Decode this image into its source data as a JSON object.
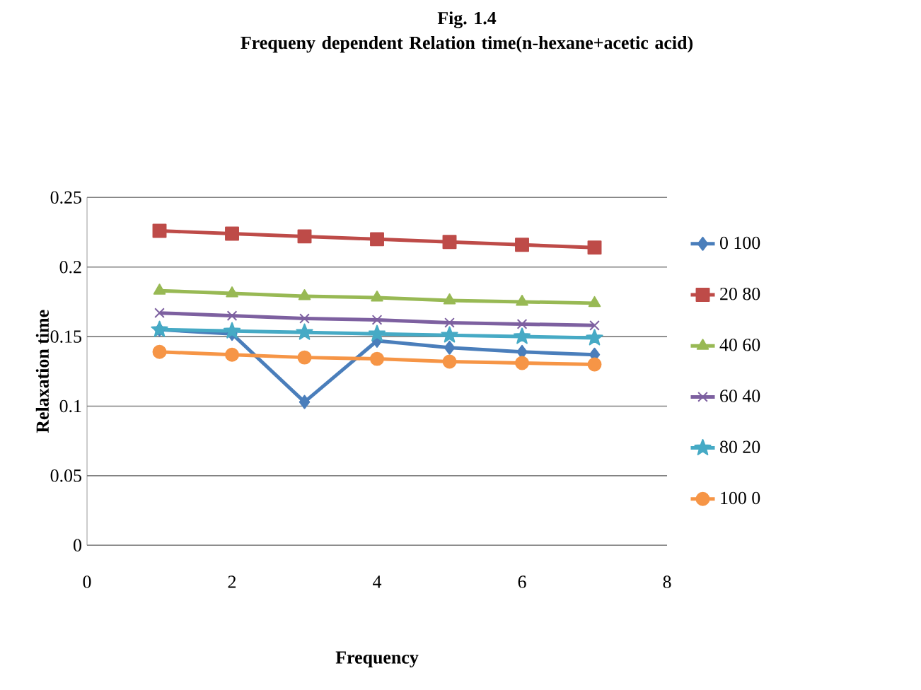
{
  "chart_data": {
    "type": "line",
    "title": "Fig. 1.4",
    "subtitle": "Frequeny dependent Relation time(n-hexane+acetic acid)",
    "xlabel": "Frequency",
    "ylabel": "Relaxation time",
    "x": [
      1,
      2,
      3,
      4,
      5,
      6,
      7
    ],
    "xlim": [
      0,
      8
    ],
    "xticks": [
      0,
      2,
      4,
      6,
      8
    ],
    "ylim": [
      0,
      0.25
    ],
    "yticks": [
      0,
      0.05,
      0.1,
      0.15,
      0.2,
      0.25
    ],
    "grid": "y",
    "legend": "right",
    "series": [
      {
        "name": "0 100",
        "color": "#4a7ebb",
        "marker": "diamond",
        "values": [
          0.155,
          0.152,
          0.103,
          0.147,
          0.142,
          0.139,
          0.137
        ]
      },
      {
        "name": "20 80",
        "color": "#be4b48",
        "marker": "square",
        "values": [
          0.226,
          0.224,
          0.222,
          0.22,
          0.218,
          0.216,
          0.214
        ]
      },
      {
        "name": "40 60",
        "color": "#98b954",
        "marker": "triangle",
        "values": [
          0.183,
          0.181,
          0.179,
          0.178,
          0.176,
          0.175,
          0.174
        ]
      },
      {
        "name": "60 40",
        "color": "#7d60a0",
        "marker": "cross",
        "values": [
          0.167,
          0.165,
          0.163,
          0.162,
          0.16,
          0.159,
          0.158
        ]
      },
      {
        "name": "80 20",
        "color": "#46aac5",
        "marker": "star",
        "values": [
          0.155,
          0.154,
          0.153,
          0.152,
          0.151,
          0.15,
          0.149
        ]
      },
      {
        "name": "100 0",
        "color": "#f69546",
        "marker": "circle",
        "values": [
          0.139,
          0.137,
          0.135,
          0.134,
          0.132,
          0.131,
          0.13
        ]
      }
    ]
  }
}
